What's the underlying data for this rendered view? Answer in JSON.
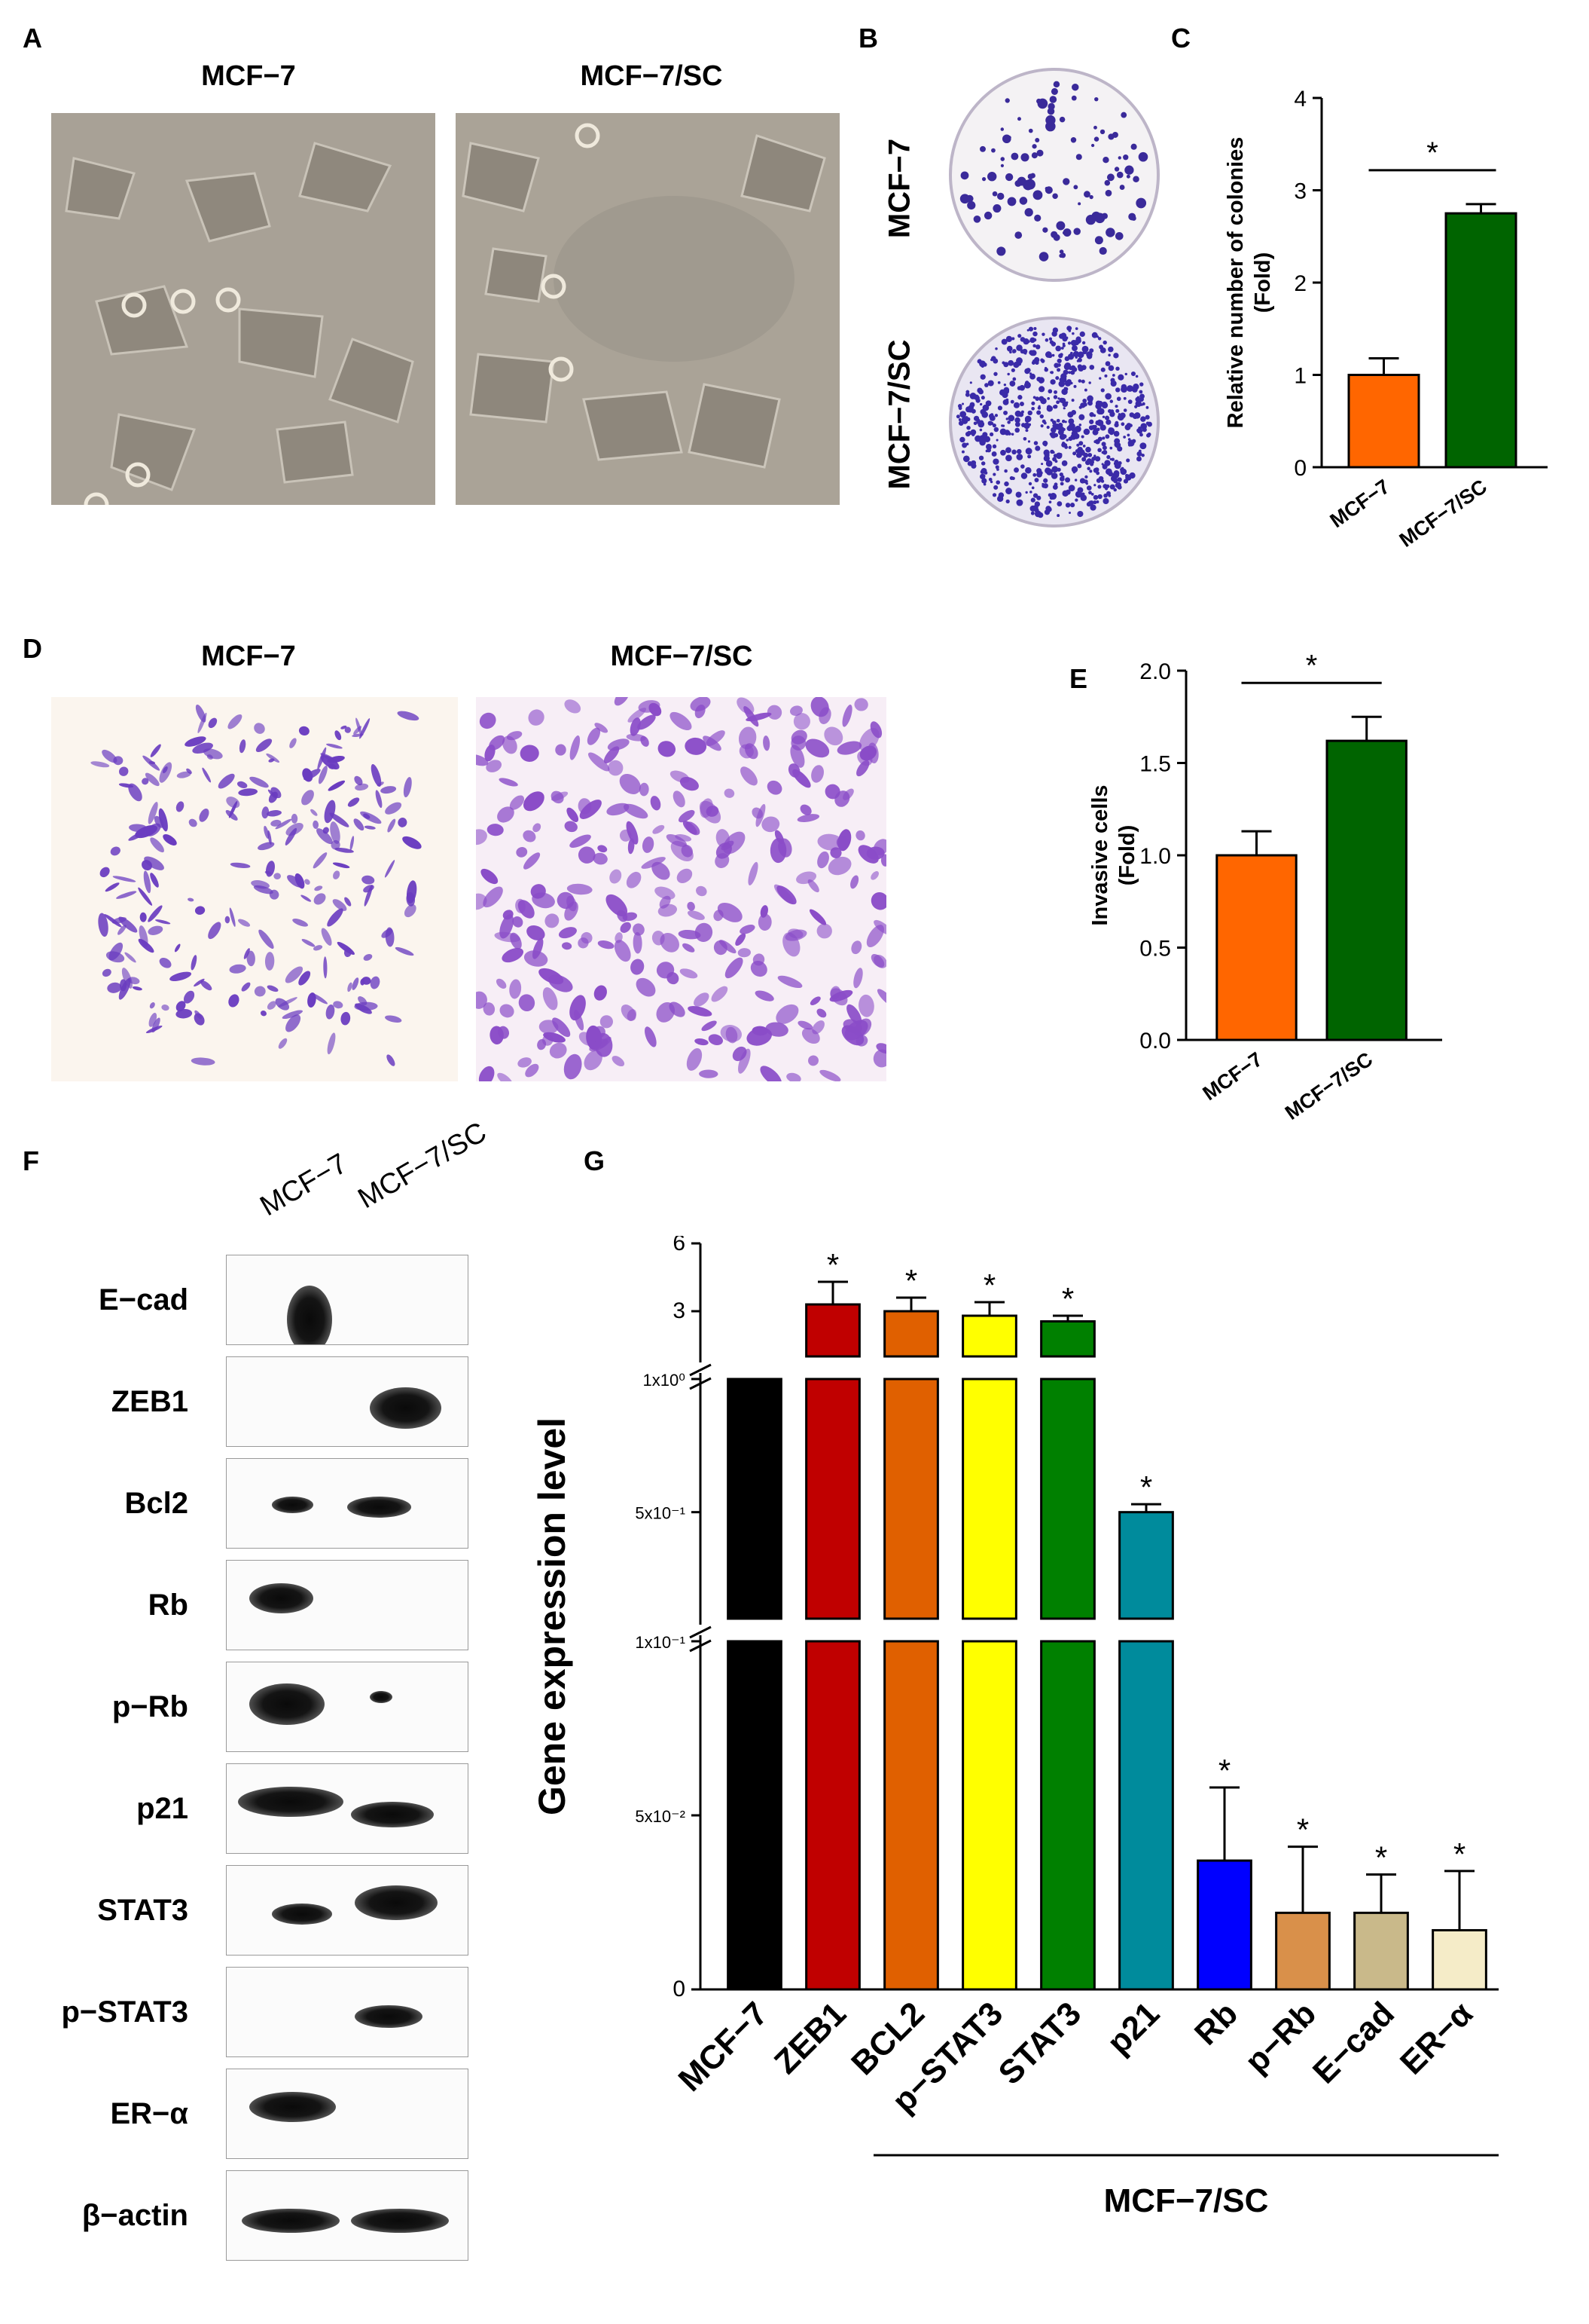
{
  "panels": {
    "A": {
      "label": "A",
      "titles": [
        "MCF−7",
        "MCF−7/SC"
      ]
    },
    "B": {
      "label": "B",
      "row_labels": [
        "MCF−7",
        "MCF−7/SC"
      ]
    },
    "C": {
      "label": "C"
    },
    "D": {
      "label": "D",
      "titles": [
        "MCF−7",
        "MCF−7/SC"
      ]
    },
    "E": {
      "label": "E"
    },
    "F": {
      "label": "F",
      "lanes": [
        "MCF−7",
        "MCF−7/SC"
      ],
      "rows": [
        "E−cad",
        "ZEB1",
        "Bcl2",
        "Rb",
        "p−Rb",
        "p21",
        "STAT3",
        "p−STAT3",
        "ER−α",
        "β−actin"
      ]
    },
    "G": {
      "label": "G",
      "group_label": "MCF−7/SC"
    }
  },
  "colors": {
    "mcf7": "#ff6600",
    "mcf7sc": "#006400",
    "crystal_violet": "#7a3fbf",
    "G_bars": [
      "#000000",
      "#c00000",
      "#e06000",
      "#ffff00",
      "#008000",
      "#008b9c",
      "#0000ff",
      "#d9904a",
      "#c9b98a",
      "#f5ecc8"
    ]
  },
  "chart_data": [
    {
      "id": "C",
      "type": "bar",
      "categories": [
        "MCF−7",
        "MCF−7/SC"
      ],
      "values": [
        1.0,
        2.75
      ],
      "errors": [
        0.18,
        0.1
      ],
      "ylabel": "Relative number of colonies\n(Fold)",
      "ylim": [
        0,
        4
      ],
      "yticks": [
        "0",
        "1",
        "2",
        "3",
        "4"
      ],
      "significance": "*"
    },
    {
      "id": "E",
      "type": "bar",
      "categories": [
        "MCF−7",
        "MCF−7/SC"
      ],
      "values": [
        1.0,
        1.62
      ],
      "errors": [
        0.13,
        0.13
      ],
      "ylabel": "Invasive cells\n(Fold)",
      "ylim": [
        0,
        2.0
      ],
      "yticks": [
        "0.0",
        "0.5",
        "1.0",
        "1.5",
        "2.0"
      ],
      "significance": "*"
    },
    {
      "id": "G",
      "type": "bar",
      "scale": "broken y-axis",
      "categories": [
        "MCF−7",
        "ZEB1",
        "BCL2",
        "p−STAT3",
        "STAT3",
        "p21",
        "Rb",
        "p−Rb",
        "E−cad",
        "ER−α"
      ],
      "values": [
        1.0,
        3.3,
        3.0,
        2.8,
        2.55,
        0.5,
        0.037,
        0.022,
        0.022,
        0.017
      ],
      "errors": [
        0,
        1.0,
        0.6,
        0.6,
        0.25,
        0.03,
        0.021,
        0.019,
        0.011,
        0.017
      ],
      "significant": [
        false,
        true,
        true,
        true,
        true,
        true,
        true,
        true,
        true,
        true
      ],
      "ylabel": "Gene expression level",
      "ytick_labels": [
        "0",
        "5x10⁻²",
        "1x10⁻¹",
        "5x10⁻¹",
        "1x10⁰",
        "3",
        "6"
      ]
    }
  ]
}
